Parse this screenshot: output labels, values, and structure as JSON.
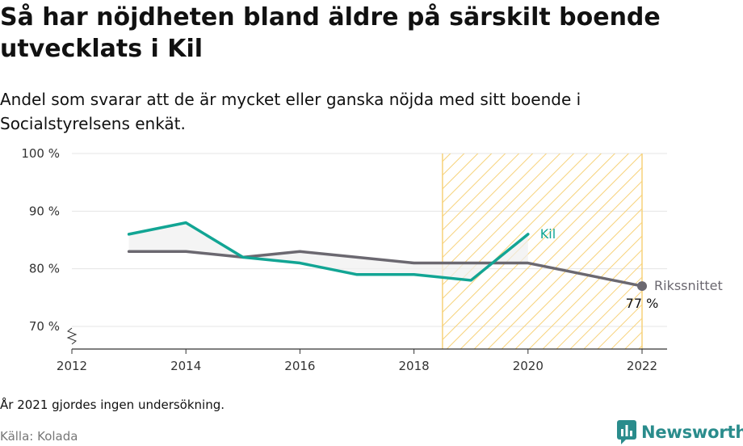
{
  "title": "Så har nöjdheten bland äldre på särskilt boende utvecklats i Kil",
  "subtitle": "Andel som svarar att de är mycket eller ganska nöjda med sitt boende i Socialstyrelsens enkät.",
  "footnote": "År 2021 gjordes ingen undersökning.",
  "source": "Källa: Kolada",
  "brand": {
    "name": "Newsworthy",
    "icon": "newsworthy-logo-icon",
    "color": "#2a8c8c"
  },
  "chart_data": {
    "type": "line",
    "xlim": [
      2012,
      2022
    ],
    "ylim": [
      70,
      100
    ],
    "x_ticks": [
      2012,
      2014,
      2016,
      2018,
      2020,
      2022
    ],
    "y_ticks": [
      70,
      80,
      90,
      100
    ],
    "y_tick_labels": [
      "70 %",
      "80 %",
      "90 %",
      "100 %"
    ],
    "grid": true,
    "highlight_range": [
      2018.5,
      2022
    ],
    "series": [
      {
        "name": "Kil",
        "color": "#12a594",
        "x": [
          2013,
          2014,
          2015,
          2016,
          2017,
          2018,
          2019,
          2020
        ],
        "y": [
          86,
          88,
          82,
          81,
          79,
          79,
          78,
          86
        ]
      },
      {
        "name": "Rikssnittet",
        "color": "#6b6870",
        "x": [
          2013,
          2014,
          2015,
          2016,
          2017,
          2018,
          2019,
          2020,
          2022
        ],
        "y": [
          83,
          83,
          82,
          83,
          82,
          81,
          81,
          81,
          77
        ],
        "end_label": "77 %"
      }
    ]
  }
}
